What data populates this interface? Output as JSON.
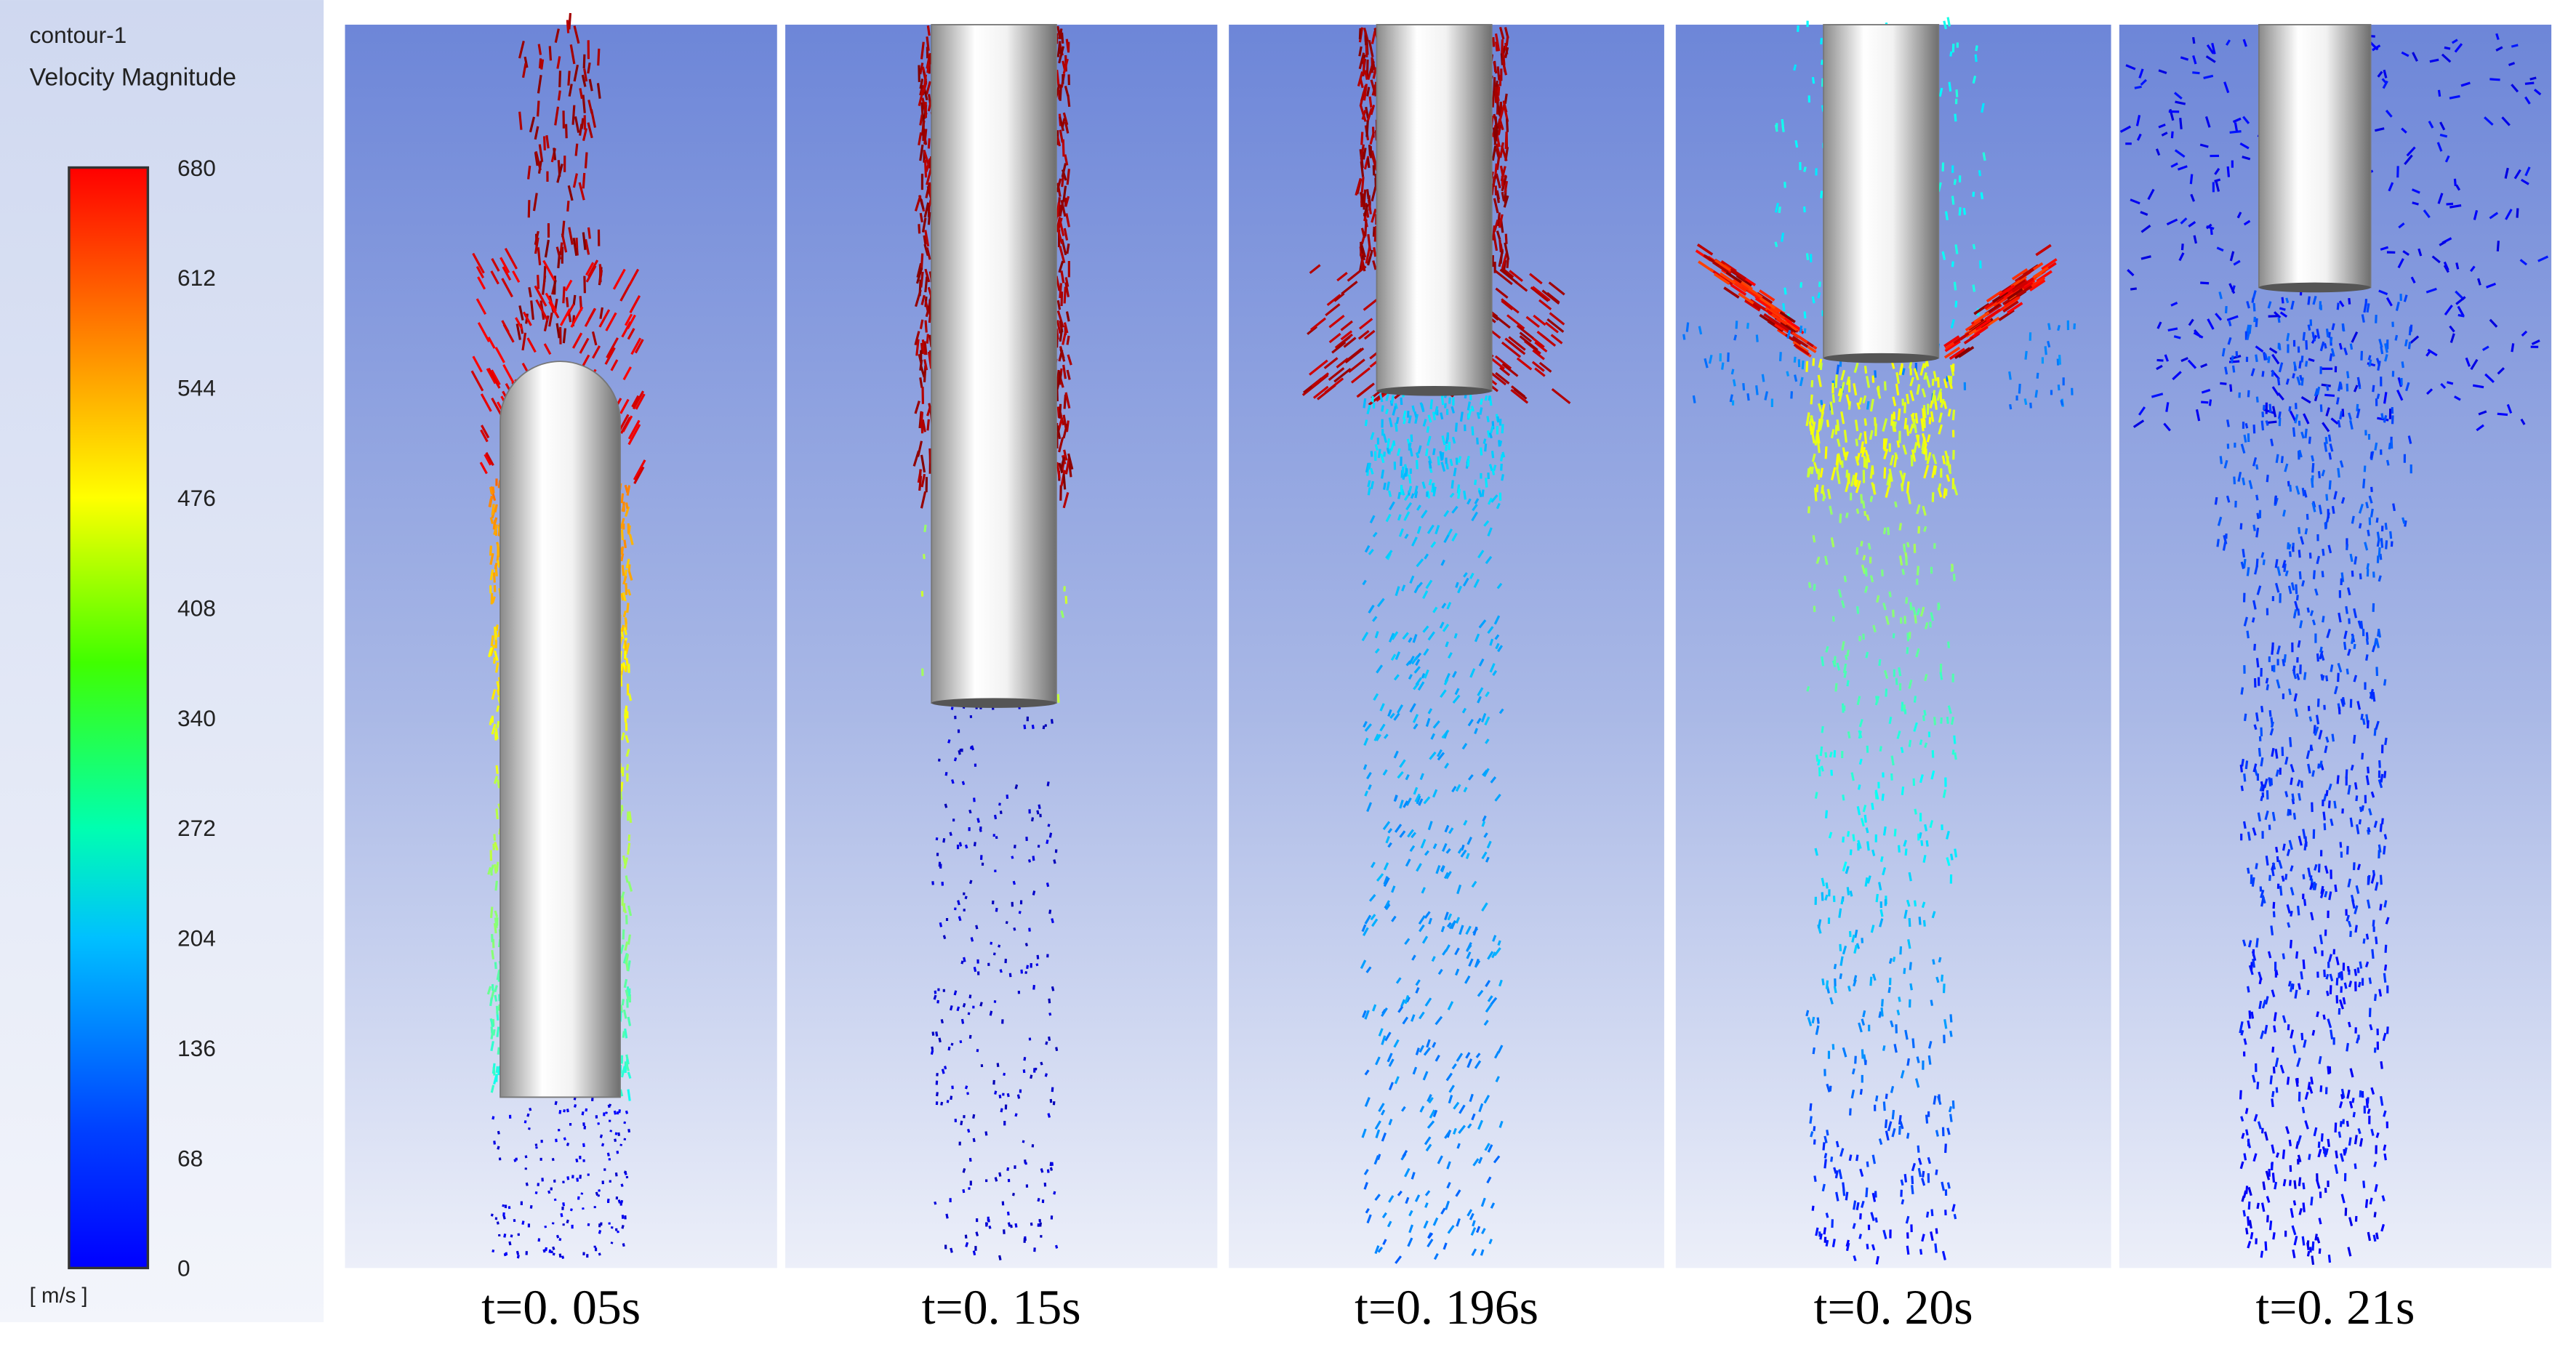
{
  "legend": {
    "title": "contour-1",
    "variable": "Velocity Magnitude",
    "ticks": [
      0,
      68,
      136,
      204,
      272,
      340,
      408,
      476,
      544,
      612,
      680
    ],
    "unit": "[ m/s ]"
  },
  "panels": [
    {
      "caption": "t=0. 05s"
    },
    {
      "caption": "t=0. 15s"
    },
    {
      "caption": "t=0. 196s"
    },
    {
      "caption": "t=0. 20s"
    },
    {
      "caption": "t=0. 21s"
    }
  ]
}
